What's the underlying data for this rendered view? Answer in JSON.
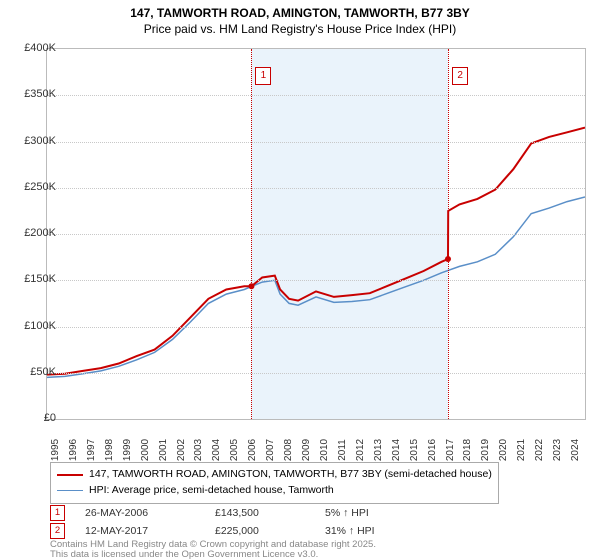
{
  "title": {
    "line1": "147, TAMWORTH ROAD, AMINGTON, TAMWORTH, B77 3BY",
    "line2": "Price paid vs. HM Land Registry's House Price Index (HPI)",
    "fontsize": 12,
    "color": "#000000"
  },
  "chart": {
    "type": "line",
    "background_color": "#ffffff",
    "band_color": "#eaf3fb",
    "grid_color": "#c8c8c8",
    "x": {
      "min": 1995,
      "max": 2025,
      "ticks": [
        1995,
        1996,
        1997,
        1998,
        1999,
        2000,
        2001,
        2002,
        2003,
        2004,
        2005,
        2006,
        2007,
        2008,
        2009,
        2010,
        2011,
        2012,
        2013,
        2014,
        2015,
        2016,
        2017,
        2018,
        2019,
        2020,
        2021,
        2022,
        2023,
        2024
      ],
      "label_fontsize": 10
    },
    "y": {
      "min": 0,
      "max": 400000,
      "ticks": [
        0,
        50000,
        100000,
        150000,
        200000,
        250000,
        300000,
        350000,
        400000
      ],
      "tick_labels": [
        "£0",
        "£50K",
        "£100K",
        "£150K",
        "£200K",
        "£250K",
        "£300K",
        "£350K",
        "£400K"
      ],
      "label_fontsize": 11
    },
    "markers": [
      {
        "n": "1",
        "year": 2006.4,
        "color": "#c80000"
      },
      {
        "n": "2",
        "year": 2017.37,
        "color": "#c80000"
      }
    ],
    "series": [
      {
        "name": "property",
        "color": "#c80000",
        "width": 2.0,
        "data": [
          [
            1995,
            48000
          ],
          [
            1996,
            49000
          ],
          [
            1997,
            52000
          ],
          [
            1998,
            55000
          ],
          [
            1999,
            60000
          ],
          [
            2000,
            68000
          ],
          [
            2001,
            75000
          ],
          [
            2002,
            90000
          ],
          [
            2003,
            110000
          ],
          [
            2004,
            130000
          ],
          [
            2005,
            140000
          ],
          [
            2006,
            143500
          ],
          [
            2006.4,
            143500
          ],
          [
            2007,
            153000
          ],
          [
            2007.7,
            155000
          ],
          [
            2008,
            140000
          ],
          [
            2008.5,
            130000
          ],
          [
            2009,
            128000
          ],
          [
            2010,
            138000
          ],
          [
            2011,
            132000
          ],
          [
            2012,
            134000
          ],
          [
            2013,
            136000
          ],
          [
            2014,
            144000
          ],
          [
            2015,
            152000
          ],
          [
            2016,
            160000
          ],
          [
            2017,
            170000
          ],
          [
            2017.36,
            173000
          ],
          [
            2017.37,
            225000
          ],
          [
            2018,
            232000
          ],
          [
            2019,
            238000
          ],
          [
            2020,
            248000
          ],
          [
            2021,
            270000
          ],
          [
            2022,
            298000
          ],
          [
            2023,
            305000
          ],
          [
            2024,
            310000
          ],
          [
            2025,
            315000
          ]
        ]
      },
      {
        "name": "hpi",
        "color": "#5a8fc8",
        "width": 1.5,
        "data": [
          [
            1995,
            45000
          ],
          [
            1996,
            46000
          ],
          [
            1997,
            49000
          ],
          [
            1998,
            52000
          ],
          [
            1999,
            57000
          ],
          [
            2000,
            64000
          ],
          [
            2001,
            72000
          ],
          [
            2002,
            86000
          ],
          [
            2003,
            105000
          ],
          [
            2004,
            125000
          ],
          [
            2005,
            135000
          ],
          [
            2006,
            140000
          ],
          [
            2007,
            148000
          ],
          [
            2007.7,
            150000
          ],
          [
            2008,
            135000
          ],
          [
            2008.5,
            125000
          ],
          [
            2009,
            123000
          ],
          [
            2010,
            132000
          ],
          [
            2011,
            126000
          ],
          [
            2012,
            127000
          ],
          [
            2013,
            129000
          ],
          [
            2014,
            136000
          ],
          [
            2015,
            143000
          ],
          [
            2016,
            150000
          ],
          [
            2017,
            158000
          ],
          [
            2018,
            165000
          ],
          [
            2019,
            170000
          ],
          [
            2020,
            178000
          ],
          [
            2021,
            197000
          ],
          [
            2022,
            222000
          ],
          [
            2023,
            228000
          ],
          [
            2024,
            235000
          ],
          [
            2025,
            240000
          ]
        ]
      }
    ]
  },
  "legend": {
    "items": [
      {
        "color": "#c80000",
        "width": 2.0,
        "label": "147, TAMWORTH ROAD, AMINGTON, TAMWORTH, B77 3BY (semi-detached house)"
      },
      {
        "color": "#5a8fc8",
        "width": 1.5,
        "label": "HPI: Average price, semi-detached house, Tamworth"
      }
    ],
    "fontsize": 10.5
  },
  "events": [
    {
      "n": "1",
      "color": "#c80000",
      "date": "26-MAY-2006",
      "price": "£143,500",
      "pct": "5% ↑ HPI"
    },
    {
      "n": "2",
      "color": "#c80000",
      "date": "12-MAY-2017",
      "price": "£225,000",
      "pct": "31% ↑ HPI"
    }
  ],
  "license": {
    "line1": "Contains HM Land Registry data © Crown copyright and database right 2025.",
    "line2": "This data is licensed under the Open Government Licence v3.0.",
    "color": "#888888",
    "fontsize": 9.5
  }
}
